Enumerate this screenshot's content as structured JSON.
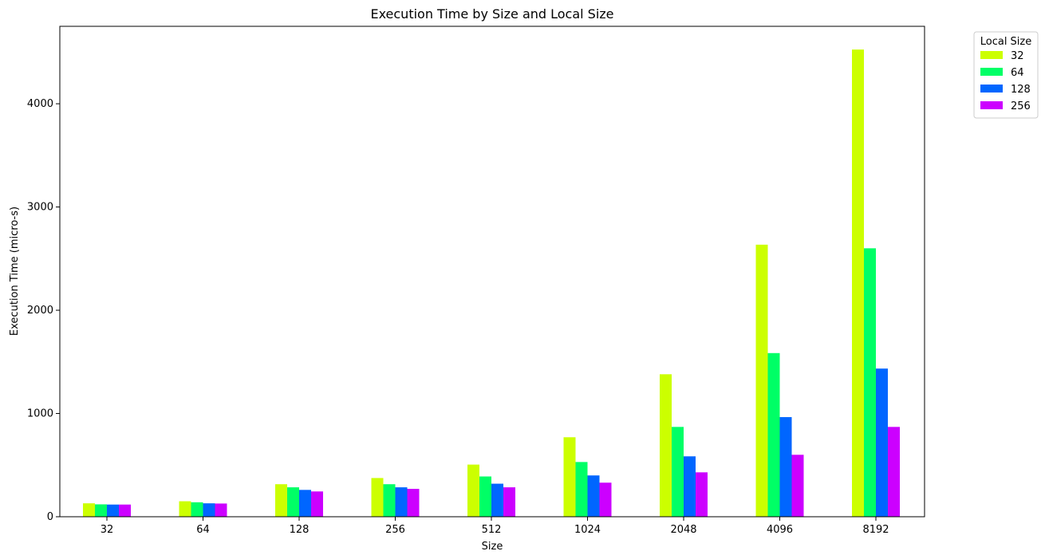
{
  "chart_data": {
    "type": "bar",
    "title": "Execution Time by Size and Local Size",
    "xlabel": "Size",
    "ylabel": "Execution Time (micro-s)",
    "categories": [
      "32",
      "64",
      "128",
      "256",
      "512",
      "1024",
      "2048",
      "4096",
      "8192"
    ],
    "ylim": [
      0,
      4750
    ],
    "yticks": [
      0,
      1000,
      2000,
      3000,
      4000
    ],
    "grid": false,
    "legend": {
      "title": "Local Size",
      "placement": "outside-top-right"
    },
    "series": [
      {
        "name": "32",
        "color": "#ccff00",
        "values": [
          130,
          150,
          315,
          375,
          505,
          770,
          1380,
          2635,
          4525
        ]
      },
      {
        "name": "64",
        "color": "#00ff66",
        "values": [
          120,
          140,
          285,
          315,
          390,
          530,
          870,
          1585,
          2600
        ]
      },
      {
        "name": "128",
        "color": "#0066ff",
        "values": [
          118,
          130,
          260,
          285,
          320,
          400,
          585,
          965,
          1435
        ]
      },
      {
        "name": "256",
        "color": "#cc00ff",
        "values": [
          118,
          128,
          245,
          270,
          285,
          330,
          430,
          600,
          870
        ]
      }
    ]
  }
}
